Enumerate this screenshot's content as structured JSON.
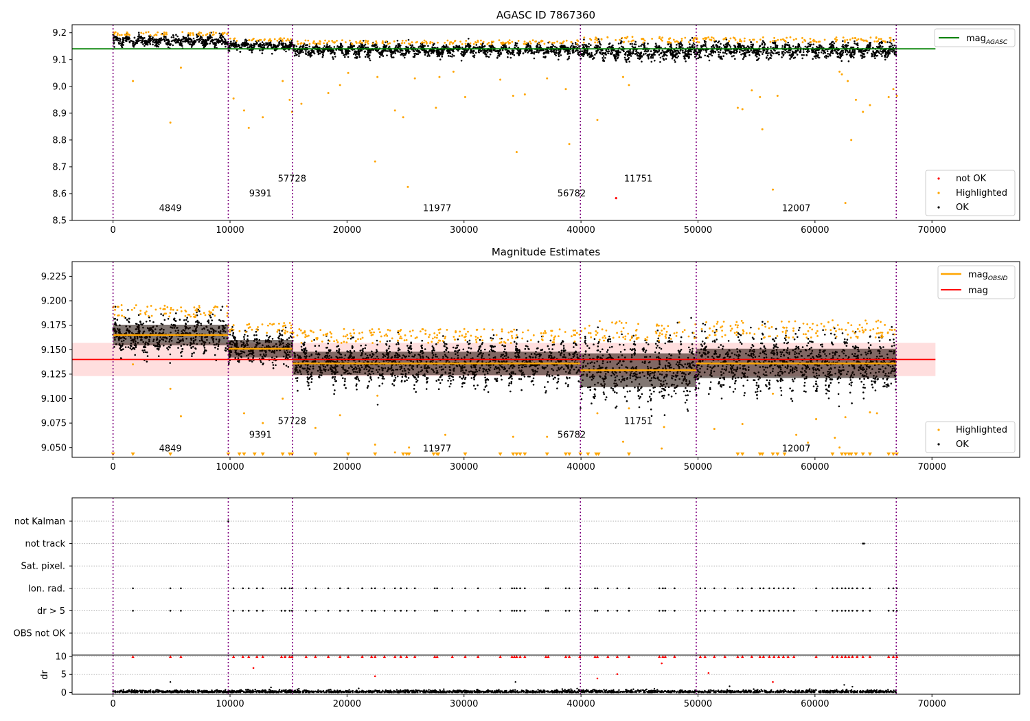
{
  "figure": {
    "colors": {
      "ok": "#000000",
      "highlighted": "#ffa500",
      "not_ok": "#ff0000",
      "agasc_line": "#008000",
      "mag_line": "#ff0000",
      "mag_band": "#ffcccc",
      "obsid_mean": "#ffa500",
      "boundary": "#800080"
    }
  },
  "chart_data": [
    {
      "type": "scatter",
      "title": "AGASC ID 7867360",
      "xlim": [
        -3500,
        77500
      ],
      "xticks": [
        0,
        10000,
        20000,
        30000,
        40000,
        50000,
        60000,
        70000
      ],
      "ylim": [
        8.5,
        9.23
      ],
      "yticks": [
        "9.2",
        "9.1",
        "9.0",
        "8.9",
        "8.8",
        "8.7",
        "8.6",
        "8.5"
      ],
      "ytick_values": [
        9.2,
        9.1,
        9.0,
        8.9,
        8.8,
        8.7,
        8.6,
        8.5
      ],
      "mag_agasc": 9.14,
      "obsid_boundaries": [
        0,
        9850,
        15350,
        39950,
        49850,
        66950
      ],
      "obsids": [
        {
          "label": "4849",
          "x": 4900,
          "y": 8.535
        },
        {
          "label": "9391",
          "x": 12600,
          "y": 8.59
        },
        {
          "label": "57728",
          "x": 15300,
          "y": 8.645
        },
        {
          "label": "11977",
          "x": 27700,
          "y": 8.535
        },
        {
          "label": "56782",
          "x": 39200,
          "y": 8.59
        },
        {
          "label": "11751",
          "x": 44900,
          "y": 8.645
        },
        {
          "label": "12007",
          "x": 58400,
          "y": 8.535
        }
      ],
      "segments": [
        {
          "x0": 0,
          "x1": 9850,
          "center": 9.17,
          "spread": 0.015
        },
        {
          "x0": 9850,
          "x1": 15350,
          "center": 9.152,
          "spread": 0.013
        },
        {
          "x0": 15350,
          "x1": 39950,
          "center": 9.135,
          "spread": 0.017
        },
        {
          "x0": 39950,
          "x1": 49850,
          "center": 9.13,
          "spread": 0.025
        },
        {
          "x0": 49850,
          "x1": 66950,
          "center": 9.135,
          "spread": 0.022
        }
      ],
      "highlighted_points": [
        [
          1700,
          9.02
        ],
        [
          4900,
          8.865
        ],
        [
          5800,
          9.07
        ],
        [
          10300,
          8.955
        ],
        [
          11200,
          8.91
        ],
        [
          11600,
          8.845
        ],
        [
          12800,
          8.885
        ],
        [
          14500,
          9.02
        ],
        [
          15100,
          8.95
        ],
        [
          15300,
          8.905
        ],
        [
          16100,
          8.935
        ],
        [
          18400,
          8.975
        ],
        [
          19400,
          9.005
        ],
        [
          20100,
          9.05
        ],
        [
          22400,
          8.72
        ],
        [
          22600,
          9.035
        ],
        [
          24100,
          8.91
        ],
        [
          24800,
          8.885
        ],
        [
          25200,
          8.625
        ],
        [
          25800,
          9.03
        ],
        [
          27600,
          8.92
        ],
        [
          27900,
          9.035
        ],
        [
          29100,
          9.055
        ],
        [
          30100,
          8.96
        ],
        [
          33100,
          9.025
        ],
        [
          34200,
          8.965
        ],
        [
          34500,
          8.755
        ],
        [
          35200,
          8.97
        ],
        [
          37100,
          9.03
        ],
        [
          38700,
          8.99
        ],
        [
          39000,
          8.785
        ],
        [
          41400,
          8.875
        ],
        [
          43600,
          9.035
        ],
        [
          44100,
          9.005
        ],
        [
          53400,
          8.92
        ],
        [
          53800,
          8.915
        ],
        [
          54600,
          8.985
        ],
        [
          55300,
          8.96
        ],
        [
          55500,
          8.84
        ],
        [
          56400,
          8.615
        ],
        [
          56800,
          8.965
        ],
        [
          62100,
          9.055
        ],
        [
          62300,
          9.045
        ],
        [
          62600,
          8.565
        ],
        [
          62800,
          9.02
        ],
        [
          63100,
          8.8
        ],
        [
          63500,
          8.95
        ],
        [
          64100,
          8.905
        ],
        [
          64700,
          8.93
        ],
        [
          66300,
          8.96
        ],
        [
          66700,
          8.99
        ],
        [
          67000,
          8.965
        ]
      ],
      "not_ok_points": [
        [
          43000,
          8.583
        ]
      ],
      "legend_upper": [
        {
          "label": "mag",
          "sub": "AGASC",
          "kind": "line",
          "color": "#008000"
        }
      ],
      "legend_lower": [
        {
          "label": "not OK",
          "kind": "dot",
          "color": "#ff0000"
        },
        {
          "label": "Highlighted",
          "kind": "dot",
          "color": "#ffa500"
        },
        {
          "label": "OK",
          "kind": "dot",
          "color": "#000000"
        }
      ]
    },
    {
      "type": "scatter",
      "title": "Magnitude Estimates",
      "xlim": [
        -3500,
        77500
      ],
      "xticks": [
        0,
        10000,
        20000,
        30000,
        40000,
        50000,
        60000,
        70000
      ],
      "ylim": [
        9.04,
        9.24
      ],
      "yticks": [
        "9.225",
        "9.200",
        "9.175",
        "9.150",
        "9.125",
        "9.100",
        "9.075",
        "9.050"
      ],
      "ytick_values": [
        9.225,
        9.2,
        9.175,
        9.15,
        9.125,
        9.1,
        9.075,
        9.05
      ],
      "mag": 9.14,
      "mag_band": [
        9.123,
        9.157
      ],
      "obsid_boundaries": [
        0,
        9850,
        15350,
        39950,
        49850,
        66950
      ],
      "obsids": [
        {
          "label": "4849",
          "x": 4900,
          "y": 9.046
        },
        {
          "label": "9391",
          "x": 12600,
          "y": 9.06
        },
        {
          "label": "57728",
          "x": 15300,
          "y": 9.074
        },
        {
          "label": "11977",
          "x": 27700,
          "y": 9.046
        },
        {
          "label": "56782",
          "x": 39200,
          "y": 9.06
        },
        {
          "label": "11751",
          "x": 44900,
          "y": 9.074
        },
        {
          "label": "12007",
          "x": 58400,
          "y": 9.046
        }
      ],
      "segments": [
        {
          "x0": 0,
          "x1": 9850,
          "mean": 9.165,
          "spread": 0.014
        },
        {
          "x0": 9850,
          "x1": 15350,
          "mean": 9.151,
          "spread": 0.012
        },
        {
          "x0": 15350,
          "x1": 39950,
          "mean": 9.136,
          "spread": 0.016
        },
        {
          "x0": 39950,
          "x1": 49850,
          "mean": 9.129,
          "spread": 0.023
        },
        {
          "x0": 49850,
          "x1": 66950,
          "mean": 9.136,
          "spread": 0.02
        }
      ],
      "highlighted_points": [
        [
          1700,
          9.135
        ],
        [
          4900,
          9.11
        ],
        [
          5800,
          9.082
        ],
        [
          10300,
          9.175
        ],
        [
          11200,
          9.085
        ],
        [
          12800,
          9.075
        ],
        [
          14500,
          9.1
        ],
        [
          17300,
          9.07
        ],
        [
          19400,
          9.083
        ],
        [
          22400,
          9.053
        ],
        [
          22600,
          9.103
        ],
        [
          24100,
          9.045
        ],
        [
          25300,
          9.05
        ],
        [
          28400,
          9.063
        ],
        [
          34200,
          9.061
        ],
        [
          37100,
          9.061
        ],
        [
          41400,
          9.085
        ],
        [
          43600,
          9.056
        ],
        [
          44100,
          9.09
        ],
        [
          46900,
          9.049
        ],
        [
          47100,
          9.071
        ],
        [
          51400,
          9.069
        ],
        [
          53800,
          9.074
        ],
        [
          56400,
          9.105
        ],
        [
          58400,
          9.063
        ],
        [
          59400,
          9.055
        ],
        [
          60100,
          9.079
        ],
        [
          61700,
          9.06
        ],
        [
          62100,
          9.05
        ],
        [
          62600,
          9.081
        ],
        [
          64700,
          9.086
        ],
        [
          65300,
          9.085
        ]
      ],
      "below_range_markers": [
        0,
        1700,
        4900,
        9850,
        10800,
        11200,
        12100,
        12800,
        14500,
        15100,
        15300,
        17300,
        20100,
        22400,
        24800,
        25100,
        25300,
        27400,
        27700,
        27800,
        30100,
        33100,
        34200,
        34500,
        34800,
        35200,
        37100,
        38700,
        39000,
        39950,
        40600,
        41300,
        41500,
        44100,
        53400,
        53800,
        55300,
        55500,
        56400,
        56800,
        57400,
        61500,
        62300,
        62600,
        62900,
        63100,
        63500,
        64100,
        64700,
        66300,
        66700,
        67000
      ],
      "legend_upper": [
        {
          "label": "mag",
          "sub": "OBSID",
          "kind": "line",
          "color": "#ffa500"
        },
        {
          "label": "mag",
          "kind": "line",
          "color": "#ff0000"
        }
      ],
      "legend_lower": [
        {
          "label": "Highlighted",
          "kind": "dot",
          "color": "#ffa500"
        },
        {
          "label": "OK",
          "kind": "dot",
          "color": "#000000"
        }
      ]
    },
    {
      "type": "scatter",
      "title": "",
      "xlim": [
        -3500,
        77500
      ],
      "xticks": [
        0,
        10000,
        20000,
        30000,
        40000,
        50000,
        60000,
        70000
      ],
      "obsid_boundaries": [
        0,
        9850,
        15350,
        39950,
        49850,
        66950
      ],
      "flag_categories": [
        "not Kalman",
        "not track",
        "Sat. pixel.",
        "Ion. rad.",
        "dr > 5",
        "OBS not OK"
      ],
      "flag_points": {
        "not Kalman": [
          9850
        ],
        "not track": [
          64100,
          64200
        ],
        "Sat. pixel.": [],
        "Ion. rad.": [
          1700,
          4900,
          5800,
          10300,
          11100,
          11600,
          12300,
          12800,
          14400,
          14700,
          15100,
          15300,
          16500,
          17300,
          18400,
          19400,
          20100,
          21300,
          22100,
          22400,
          23200,
          24100,
          24600,
          25100,
          25800,
          27500,
          27700,
          29000,
          30100,
          31200,
          33100,
          34100,
          34300,
          34500,
          34800,
          35200,
          37000,
          37200,
          38700,
          39000,
          39900,
          41200,
          41400,
          42300,
          43100,
          44100,
          46700,
          47000,
          47200,
          48000,
          50200,
          50600,
          51400,
          52300,
          53400,
          53800,
          54600,
          55300,
          55600,
          56100,
          56500,
          56900,
          57300,
          57700,
          58200,
          60100,
          61500,
          61900,
          62300,
          62600,
          62900,
          63200,
          63600,
          64100,
          64700,
          66300,
          66700,
          67000
        ],
        "dr > 5": [
          1700,
          4900,
          5800,
          10300,
          11100,
          11600,
          12300,
          12800,
          14400,
          14700,
          15100,
          15300,
          16500,
          17300,
          18400,
          19400,
          20100,
          21300,
          22100,
          22400,
          23200,
          24100,
          24600,
          25100,
          25800,
          27500,
          27700,
          29000,
          30100,
          31200,
          33100,
          34100,
          34300,
          34500,
          34800,
          35200,
          37000,
          37200,
          38700,
          39000,
          39900,
          41200,
          41400,
          42300,
          43100,
          44100,
          46700,
          47000,
          47200,
          48000,
          50200,
          50600,
          51400,
          52300,
          53400,
          53800,
          54600,
          55300,
          55600,
          56100,
          56500,
          56900,
          57300,
          57700,
          58200,
          60100,
          61500,
          61900,
          62300,
          62600,
          62900,
          63200,
          63600,
          64100,
          64700,
          66300,
          66700,
          67000
        ],
        "OBS not OK": []
      }
    },
    {
      "type": "scatter",
      "ylabel": "dr",
      "xlim": [
        -3500,
        77500
      ],
      "xticks": [
        0,
        10000,
        20000,
        30000,
        40000,
        50000,
        60000,
        70000
      ],
      "ylim": [
        -0.5,
        10.4
      ],
      "yticks": [
        "10",
        "5",
        "0"
      ],
      "ytick_values": [
        10,
        5,
        0
      ],
      "obsid_boundaries": [
        0,
        9850,
        15350,
        39950,
        49850,
        66950
      ],
      "capped_points_at_10": [
        1700,
        4900,
        5800,
        10300,
        11100,
        11600,
        12300,
        12800,
        14400,
        14700,
        15100,
        15300,
        16500,
        17300,
        18400,
        19400,
        20100,
        21300,
        22100,
        22400,
        23200,
        24100,
        24600,
        25100,
        25800,
        27500,
        27700,
        29000,
        30100,
        31200,
        33100,
        34100,
        34300,
        34500,
        34800,
        35200,
        37000,
        37200,
        38700,
        39000,
        39900,
        41200,
        41400,
        42300,
        43100,
        44100,
        46700,
        47000,
        47200,
        48000,
        50200,
        50600,
        51400,
        52300,
        53400,
        53800,
        54600,
        55300,
        55600,
        56100,
        56500,
        56900,
        57300,
        57700,
        58200,
        60100,
        61500,
        61900,
        62300,
        62600,
        62900,
        63200,
        63600,
        64100,
        64700,
        66300,
        66700,
        67000
      ],
      "red_points": [
        [
          12000,
          6.8
        ],
        [
          22400,
          4.5
        ],
        [
          41400,
          3.9
        ],
        [
          43100,
          5.1
        ],
        [
          46900,
          8.1
        ],
        [
          50900,
          5.4
        ],
        [
          56400,
          2.9
        ]
      ],
      "black_outliers": [
        [
          4900,
          2.9
        ],
        [
          13500,
          1.4
        ],
        [
          21000,
          1.1
        ],
        [
          34400,
          2.9
        ],
        [
          52700,
          1.7
        ],
        [
          62500,
          2.1
        ],
        [
          63200,
          1.6
        ]
      ]
    }
  ]
}
